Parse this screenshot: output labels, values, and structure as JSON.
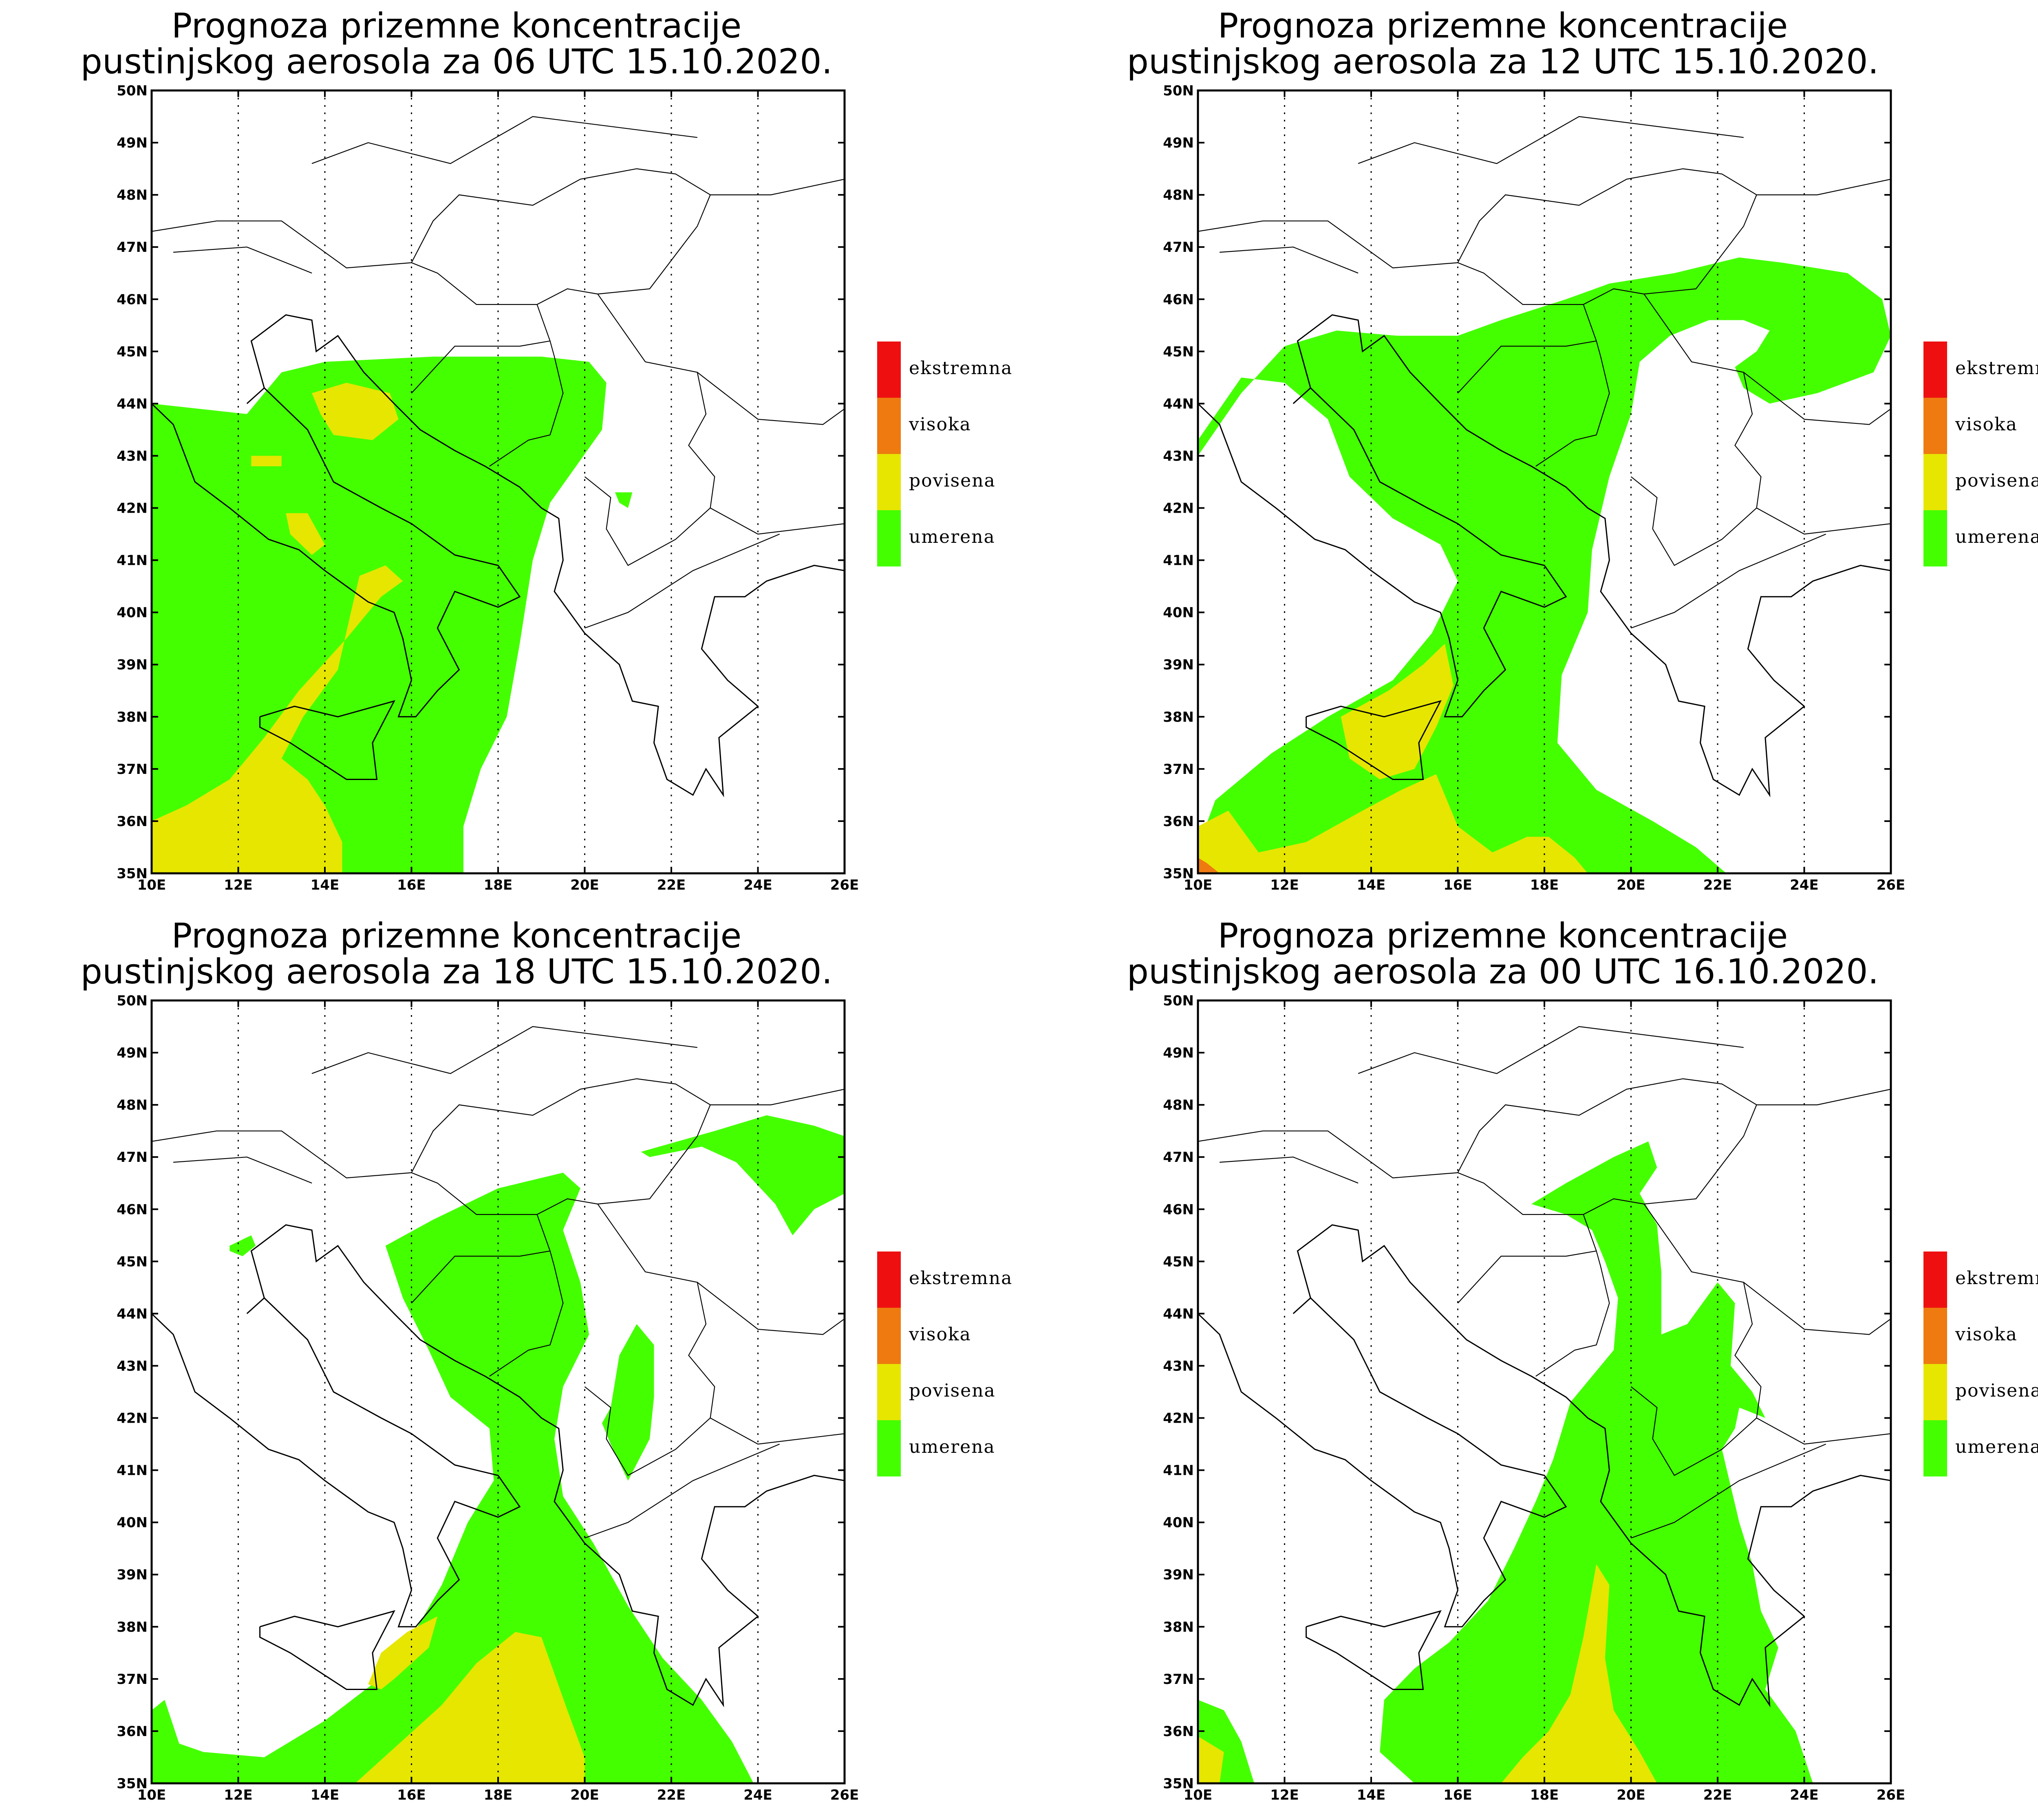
{
  "lon_ticks": [
    "10E",
    "12E",
    "14E",
    "16E",
    "18E",
    "20E",
    "22E",
    "24E",
    "26E"
  ],
  "lat_ticks": [
    "35N",
    "36N",
    "37N",
    "38N",
    "39N",
    "40N",
    "41N",
    "42N",
    "43N",
    "44N",
    "45N",
    "46N",
    "47N",
    "48N",
    "49N",
    "50N"
  ],
  "legend": [
    {
      "label": "ekstremna",
      "color": "#ee1010"
    },
    {
      "label": "visoka",
      "color": "#ee7a10"
    },
    {
      "label": "povisena",
      "color": "#e6e600"
    },
    {
      "label": "umerena",
      "color": "#44ff00"
    }
  ],
  "panels": [
    {
      "title_line1": "Prognoza prizemne koncentracije",
      "title_line2": "pustinjskog aerosola za 06 UTC 15.10.2020."
    },
    {
      "title_line1": "Prognoza prizemne koncentracije",
      "title_line2": "pustinjskog aerosola za 12 UTC 15.10.2020."
    },
    {
      "title_line1": "Prognoza prizemne koncentracije",
      "title_line2": "pustinjskog aerosola za 18 UTC 15.10.2020."
    },
    {
      "title_line1": "Prognoza prizemne koncentracije",
      "title_line2": "pustinjskog aerosola za 00 UTC 16.10.2020."
    }
  ]
}
